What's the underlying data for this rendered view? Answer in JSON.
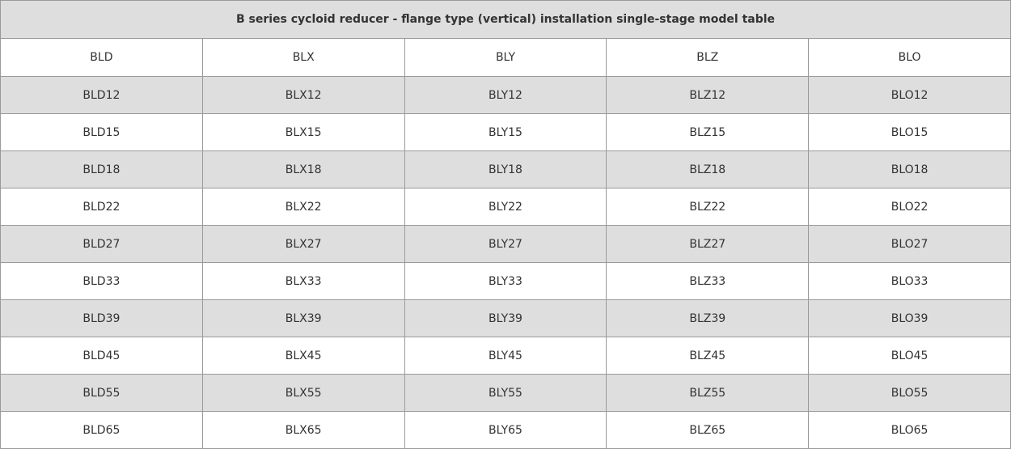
{
  "table": {
    "title": "B series cycloid reducer - flange type (vertical) installation single-stage model table",
    "header": [
      "BLD",
      "BLX",
      "BLY",
      "BLZ",
      "BLO"
    ],
    "rows": [
      [
        "BLD12",
        "BLX12",
        "BLY12",
        "BLZ12",
        "BLO12"
      ],
      [
        "BLD15",
        "BLX15",
        "BLY15",
        "BLZ15",
        "BLO15"
      ],
      [
        "BLD18",
        "BLX18",
        "BLY18",
        "BLZ18",
        "BLO18"
      ],
      [
        "BLD22",
        "BLX22",
        "BLY22",
        "BLZ22",
        "BLO22"
      ],
      [
        "BLD27",
        "BLX27",
        "BLY27",
        "BLZ27",
        "BLO27"
      ],
      [
        "BLD33",
        "BLX33",
        "BLY33",
        "BLZ33",
        "BLO33"
      ],
      [
        "BLD39",
        "BLX39",
        "BLY39",
        "BLZ39",
        "BLO39"
      ],
      [
        "BLD45",
        "BLX45",
        "BLY45",
        "BLZ45",
        "BLO45"
      ],
      [
        "BLD55",
        "BLX55",
        "BLY55",
        "BLZ55",
        "BLO55"
      ],
      [
        "BLD65",
        "BLX65",
        "BLY65",
        "BLZ65",
        "BLO65"
      ]
    ]
  }
}
